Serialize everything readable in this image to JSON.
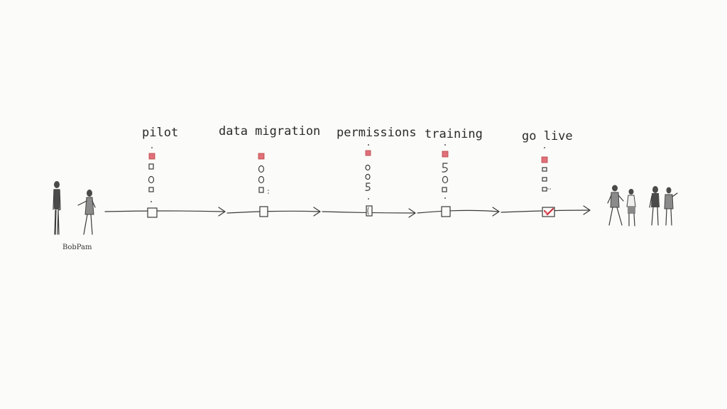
{
  "stages": [
    {
      "label": "pilot",
      "red_marker": true,
      "checked": false
    },
    {
      "label": "data migration",
      "red_marker": true,
      "checked": false
    },
    {
      "label": "permissions",
      "red_marker": true,
      "checked": false
    },
    {
      "label": "training",
      "red_marker": true,
      "checked": false
    },
    {
      "label": "go live",
      "red_marker": true,
      "checked": true
    }
  ],
  "left_group_caption": "BobPam",
  "colors": {
    "background": "#fbfbf9",
    "ink": "#3a3a3a",
    "accent_red": "#e0707a",
    "check_red": "#c8323c"
  },
  "icons": {
    "start_people": "two-people-talking-icon",
    "end_people": "group-of-four-people-icon",
    "final_box": "checkmark-box-icon"
  }
}
